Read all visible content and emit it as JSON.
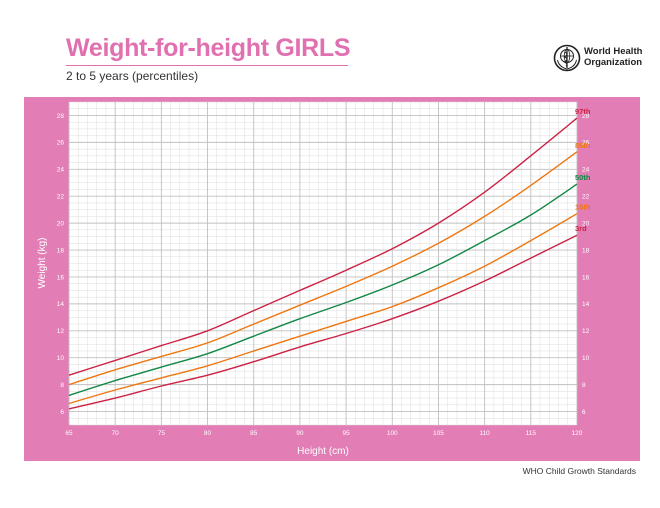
{
  "header": {
    "title": "Weight-for-height GIRLS",
    "subtitle": "2 to 5 years (percentiles)"
  },
  "logo": {
    "line1": "World Health",
    "line2": "Organization",
    "icon": "who-emblem-icon"
  },
  "footer": {
    "text": "WHO Child Growth Standards"
  },
  "colors": {
    "brand_pink": "#e070b0",
    "panel_pink": "#e27db5",
    "grid_major": "#c0c0c0",
    "grid_minor": "#dcdcdc",
    "p97": "#cc2244",
    "p85": "#ee7711",
    "p50": "#118844",
    "p15": "#ee7711",
    "p3": "#cc2244"
  },
  "chart_data": {
    "type": "line",
    "title": "Weight-for-height GIRLS",
    "subtitle": "2 to 5 years (percentiles)",
    "xlabel": "Height (cm)",
    "ylabel": "Weight (kg)",
    "xlim": [
      65,
      120
    ],
    "ylim": [
      5,
      29
    ],
    "xticks": [
      65,
      70,
      75,
      80,
      85,
      90,
      95,
      100,
      105,
      110,
      115,
      120
    ],
    "yticks": [
      6,
      8,
      10,
      12,
      14,
      16,
      18,
      20,
      22,
      24,
      26,
      28
    ],
    "grid": true,
    "x": [
      65,
      70,
      75,
      80,
      85,
      90,
      95,
      100,
      105,
      110,
      115,
      120
    ],
    "series": [
      {
        "name": "97th",
        "color": "#cc2244",
        "values": [
          8.7,
          9.8,
          10.9,
          12.0,
          13.5,
          15.0,
          16.5,
          18.1,
          20.0,
          22.3,
          25.0,
          27.8
        ]
      },
      {
        "name": "85th",
        "color": "#ee7711",
        "values": [
          8.0,
          9.1,
          10.1,
          11.1,
          12.5,
          13.9,
          15.3,
          16.8,
          18.5,
          20.5,
          22.8,
          25.3
        ]
      },
      {
        "name": "50th",
        "color": "#118844",
        "values": [
          7.2,
          8.3,
          9.3,
          10.3,
          11.6,
          12.9,
          14.1,
          15.4,
          16.9,
          18.7,
          20.6,
          22.9
        ]
      },
      {
        "name": "15th",
        "color": "#ee7711",
        "values": [
          6.6,
          7.6,
          8.5,
          9.4,
          10.5,
          11.6,
          12.7,
          13.8,
          15.2,
          16.8,
          18.7,
          20.7
        ]
      },
      {
        "name": "3rd",
        "color": "#cc2244",
        "values": [
          6.2,
          7.0,
          7.9,
          8.7,
          9.7,
          10.8,
          11.8,
          12.9,
          14.2,
          15.7,
          17.4,
          19.1
        ]
      }
    ]
  }
}
